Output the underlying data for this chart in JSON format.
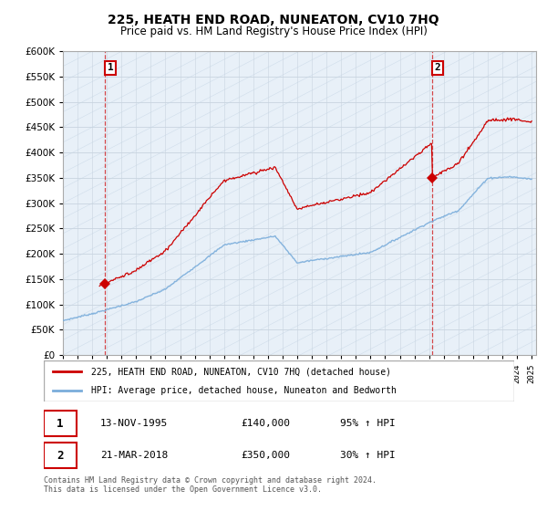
{
  "title": "225, HEATH END ROAD, NUNEATON, CV10 7HQ",
  "subtitle": "Price paid vs. HM Land Registry's House Price Index (HPI)",
  "red_label": "225, HEATH END ROAD, NUNEATON, CV10 7HQ (detached house)",
  "blue_label": "HPI: Average price, detached house, Nuneaton and Bedworth",
  "annotation1_date": "13-NOV-1995",
  "annotation1_price": "£140,000",
  "annotation1_hpi": "95% ↑ HPI",
  "annotation2_date": "21-MAR-2018",
  "annotation2_price": "£350,000",
  "annotation2_hpi": "30% ↑ HPI",
  "footer": "Contains HM Land Registry data © Crown copyright and database right 2024.\nThis data is licensed under the Open Government Licence v3.0.",
  "ylim": [
    0,
    600000
  ],
  "yticks": [
    0,
    50000,
    100000,
    150000,
    200000,
    250000,
    300000,
    350000,
    400000,
    450000,
    500000,
    550000,
    600000
  ],
  "xlim_start": 1993.0,
  "xlim_end": 2025.3,
  "red_color": "#cc0000",
  "blue_color": "#7aaddb",
  "bg_color": "#e8f0f8",
  "grid_color": "#c8d4e0",
  "anno_box_color": "#cc0000",
  "sale1_x": 1995.87,
  "sale1_y": 140000,
  "sale2_x": 2018.22,
  "sale2_y": 350000
}
